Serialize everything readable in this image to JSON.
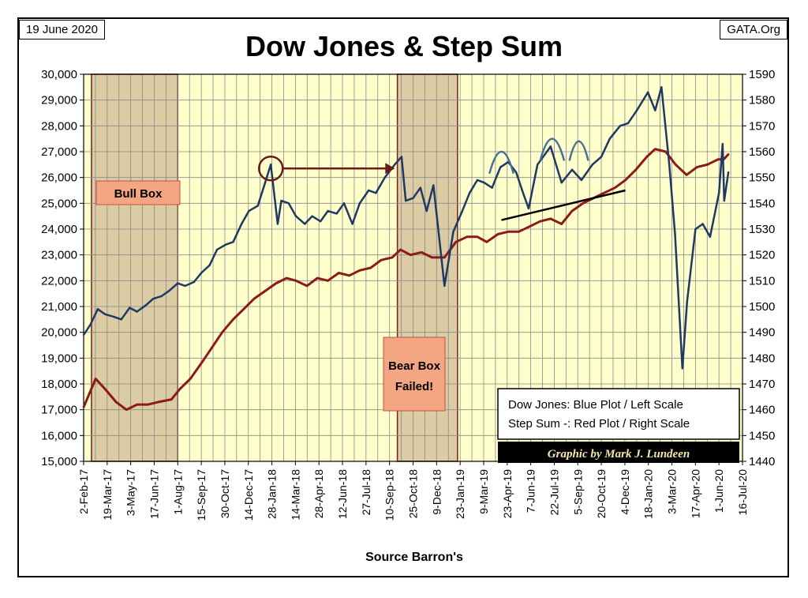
{
  "header": {
    "date": "19 June 2020",
    "source_tag": "GATA.Org",
    "title": "Dow Jones & Step Sum"
  },
  "footer": {
    "x_source": "Source Barron's",
    "credit": "Graphic by Mark J. Lundeen"
  },
  "legend": {
    "line1": "Dow Jones: Blue Plot / Left Scale",
    "line2": "Step Sum -: Red Plot / Right Scale"
  },
  "annotations": {
    "bull_box": "Bull Box",
    "bear_box_1": "Bear Box",
    "bear_box_2": "Failed!"
  },
  "colors": {
    "plot_bg": "#ffffcc",
    "grid": "#8a8a8a",
    "dow_line": "#1f3864",
    "step_line": "#8b1a1a",
    "box_fill": "#d6c39c",
    "box_border": "#7a1f1f",
    "label_fill": "#f4a682",
    "label_border": "#c0504d",
    "arc_color": "#4a6f96"
  },
  "chart_data": {
    "type": "line",
    "title": "Dow Jones & Step Sum",
    "xlabel": "Source Barron's",
    "x_tick_labels": [
      "2-Feb-17",
      "19-Mar-17",
      "3-May-17",
      "17-Jun-17",
      "1-Aug-17",
      "15-Sep-17",
      "30-Oct-17",
      "14-Dec-17",
      "28-Jan-18",
      "14-Mar-18",
      "28-Apr-18",
      "12-Jun-18",
      "27-Jul-18",
      "10-Sep-18",
      "25-Oct-18",
      "9-Dec-18",
      "23-Jan-19",
      "9-Mar-19",
      "23-Apr-19",
      "7-Jun-19",
      "22-Jul-19",
      "5-Sep-19",
      "20-Oct-19",
      "4-Dec-19",
      "18-Jan-20",
      "3-Mar-20",
      "17-Apr-20",
      "1-Jun-20",
      "16-Jul-20"
    ],
    "y_left": {
      "min": 15000,
      "max": 30000,
      "step": 1000,
      "tick_labels": [
        "15,000",
        "16,000",
        "17,000",
        "18,000",
        "19,000",
        "20,000",
        "21,000",
        "22,000",
        "23,000",
        "24,000",
        "25,000",
        "26,000",
        "27,000",
        "28,000",
        "29,000",
        "30,000"
      ]
    },
    "y_right": {
      "min": 1440,
      "max": 1590,
      "step": 10,
      "tick_labels": [
        "1440",
        "1450",
        "1460",
        "1470",
        "1480",
        "1490",
        "1500",
        "1510",
        "1520",
        "1530",
        "1540",
        "1550",
        "1560",
        "1570",
        "1580",
        "1590"
      ]
    },
    "grid": true,
    "series": [
      {
        "name": "Dow Jones",
        "axis": "left",
        "x": [
          "2017-02-02",
          "2017-02-15",
          "2017-03-01",
          "2017-03-15",
          "2017-04-01",
          "2017-04-15",
          "2017-05-01",
          "2017-05-15",
          "2017-06-01",
          "2017-06-15",
          "2017-07-01",
          "2017-07-15",
          "2017-08-01",
          "2017-08-15",
          "2017-09-01",
          "2017-09-15",
          "2017-10-01",
          "2017-10-15",
          "2017-11-01",
          "2017-11-15",
          "2017-12-01",
          "2017-12-15",
          "2018-01-01",
          "2018-01-15",
          "2018-01-26",
          "2018-02-08",
          "2018-02-15",
          "2018-03-01",
          "2018-03-15",
          "2018-04-01",
          "2018-04-15",
          "2018-05-01",
          "2018-05-15",
          "2018-06-01",
          "2018-06-15",
          "2018-07-01",
          "2018-07-15",
          "2018-08-01",
          "2018-08-15",
          "2018-09-01",
          "2018-09-20",
          "2018-10-03",
          "2018-10-11",
          "2018-10-25",
          "2018-11-08",
          "2018-11-20",
          "2018-12-03",
          "2018-12-24",
          "2019-01-10",
          "2019-01-25",
          "2019-02-10",
          "2019-02-25",
          "2019-03-10",
          "2019-03-25",
          "2019-04-10",
          "2019-04-25",
          "2019-05-10",
          "2019-05-25",
          "2019-06-03",
          "2019-06-20",
          "2019-07-15",
          "2019-08-05",
          "2019-08-25",
          "2019-09-12",
          "2019-10-03",
          "2019-10-20",
          "2019-11-05",
          "2019-11-25",
          "2019-12-10",
          "2019-12-27",
          "2020-01-17",
          "2020-01-31",
          "2020-02-12",
          "2020-02-27",
          "2020-03-09",
          "2020-03-23",
          "2020-04-01",
          "2020-04-17",
          "2020-05-01",
          "2020-05-15",
          "2020-06-01",
          "2020-06-08",
          "2020-06-11",
          "2020-06-19"
        ],
        "values": [
          19900,
          20300,
          20900,
          20700,
          20600,
          20500,
          20950,
          20800,
          21050,
          21300,
          21400,
          21600,
          21900,
          21800,
          21950,
          22300,
          22600,
          23200,
          23400,
          23500,
          24200,
          24700,
          24900,
          25800,
          26500,
          24200,
          25100,
          25000,
          24500,
          24200,
          24500,
          24300,
          24700,
          24600,
          25000,
          24200,
          25000,
          25500,
          25400,
          26000,
          26500,
          26800,
          25100,
          25200,
          25600,
          24700,
          25700,
          21800,
          23900,
          24600,
          25400,
          25900,
          25800,
          25600,
          26400,
          26600,
          26200,
          25300,
          24800,
          26500,
          27200,
          25800,
          26300,
          25900,
          26500,
          26800,
          27500,
          28000,
          28100,
          28600,
          29300,
          28600,
          29500,
          26500,
          23800,
          18600,
          21200,
          24000,
          24200,
          23700,
          25400,
          27300,
          25100,
          26200
        ],
        "color": "#1f3864"
      },
      {
        "name": "Step Sum",
        "axis": "right",
        "x": [
          "2017-02-02",
          "2017-02-25",
          "2017-03-15",
          "2017-04-05",
          "2017-04-25",
          "2017-05-15",
          "2017-06-05",
          "2017-06-25",
          "2017-07-20",
          "2017-08-05",
          "2017-08-25",
          "2017-09-15",
          "2017-10-05",
          "2017-10-25",
          "2017-11-15",
          "2017-12-05",
          "2017-12-25",
          "2018-01-15",
          "2018-02-05",
          "2018-02-25",
          "2018-03-15",
          "2018-04-05",
          "2018-04-25",
          "2018-05-15",
          "2018-06-05",
          "2018-06-25",
          "2018-07-15",
          "2018-08-05",
          "2018-08-25",
          "2018-09-15",
          "2018-10-01",
          "2018-10-20",
          "2018-11-10",
          "2018-11-30",
          "2018-12-24",
          "2019-01-15",
          "2019-02-05",
          "2019-02-25",
          "2019-03-15",
          "2019-04-05",
          "2019-04-25",
          "2019-05-15",
          "2019-06-05",
          "2019-06-25",
          "2019-07-15",
          "2019-08-05",
          "2019-08-25",
          "2019-09-15",
          "2019-10-05",
          "2019-10-25",
          "2019-11-15",
          "2019-12-05",
          "2019-12-25",
          "2020-01-15",
          "2020-01-31",
          "2020-02-20",
          "2020-03-10",
          "2020-03-31",
          "2020-04-20",
          "2020-05-10",
          "2020-05-30",
          "2020-06-10",
          "2020-06-19"
        ],
        "values": [
          1461,
          1472,
          1468,
          1463,
          1460,
          1462,
          1462,
          1463,
          1464,
          1468,
          1472,
          1478,
          1484,
          1490,
          1495,
          1499,
          1503,
          1506,
          1509,
          1511,
          1510,
          1508,
          1511,
          1510,
          1513,
          1512,
          1514,
          1515,
          1518,
          1519,
          1522,
          1520,
          1521,
          1519,
          1519,
          1525,
          1527,
          1527,
          1525,
          1528,
          1529,
          1529,
          1531,
          1533,
          1534,
          1532,
          1537,
          1540,
          1542,
          1544,
          1546,
          1549,
          1553,
          1558,
          1561,
          1560,
          1555,
          1551,
          1554,
          1555,
          1557,
          1557,
          1559
        ],
        "color": "#8b1a1a"
      }
    ]
  }
}
